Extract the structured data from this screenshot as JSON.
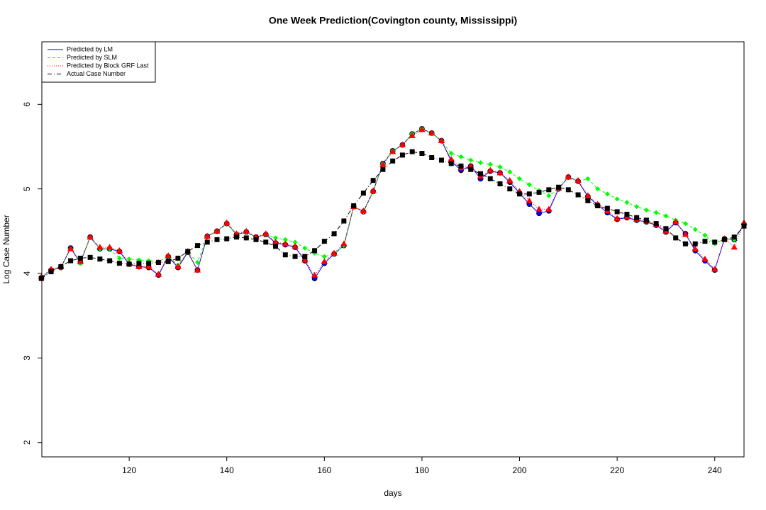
{
  "chart_data": {
    "type": "line",
    "title": "One Week Prediction(Covington county, Mississippi)",
    "x_label": "days",
    "y_label": "Log Case Number",
    "x": [
      102,
      104,
      106,
      108,
      110,
      112,
      114,
      116,
      118,
      120,
      122,
      124,
      126,
      128,
      130,
      132,
      134,
      136,
      138,
      140,
      142,
      144,
      146,
      148,
      150,
      152,
      154,
      156,
      158,
      160,
      162,
      164,
      166,
      168,
      170,
      172,
      174,
      176,
      178,
      180,
      182,
      184,
      186,
      188,
      190,
      192,
      194,
      196,
      198,
      200,
      202,
      204,
      206,
      208,
      210,
      212,
      214,
      216,
      218,
      220,
      222,
      224,
      226,
      228,
      230,
      232,
      234,
      236,
      238,
      240,
      242,
      244,
      246
    ],
    "xlim": [
      102.1,
      246
    ],
    "ylim": [
      1.83,
      6.74
    ],
    "xticks": [
      120,
      140,
      160,
      180,
      200,
      220,
      240
    ],
    "yticks": [
      2,
      3,
      4,
      5,
      6
    ],
    "legend": "topleft",
    "series": [
      {
        "name": "Predicted by LM",
        "color": "#0000ff",
        "line_style": "solid",
        "marker": "circle",
        "values": [
          3.95,
          4.04,
          4.07,
          4.3,
          4.13,
          4.43,
          4.29,
          4.29,
          4.26,
          4.11,
          4.08,
          4.07,
          3.98,
          4.2,
          4.07,
          4.25,
          4.04,
          4.44,
          4.5,
          4.59,
          4.46,
          4.49,
          4.43,
          4.46,
          4.36,
          4.34,
          4.31,
          4.15,
          3.94,
          4.12,
          4.23,
          4.33,
          4.79,
          4.73,
          4.97,
          5.3,
          5.45,
          5.52,
          5.65,
          5.71,
          5.66,
          5.57,
          5.33,
          5.22,
          5.27,
          5.12,
          5.21,
          5.19,
          5.08,
          4.95,
          4.82,
          4.71,
          4.74,
          5.0,
          5.14,
          5.09,
          4.91,
          4.81,
          4.72,
          4.64,
          4.66,
          4.63,
          4.61,
          4.57,
          4.49,
          4.6,
          4.47,
          4.27,
          4.15,
          4.04,
          4.41,
          4.4,
          4.58
        ]
      },
      {
        "name": "Predicted by SLM",
        "color": "#00ff00",
        "line_style": "dashed",
        "marker": "diamond",
        "values": [
          3.95,
          4.04,
          4.07,
          4.29,
          4.12,
          4.43,
          4.29,
          4.29,
          4.18,
          4.17,
          4.16,
          4.15,
          4.14,
          4.2,
          4.1,
          4.25,
          4.13,
          4.44,
          4.5,
          4.59,
          4.46,
          4.49,
          4.43,
          4.46,
          4.42,
          4.4,
          4.37,
          4.3,
          4.24,
          4.2,
          4.23,
          4.33,
          4.79,
          4.73,
          4.97,
          5.3,
          5.45,
          5.52,
          5.65,
          5.71,
          5.66,
          5.57,
          5.42,
          5.38,
          5.34,
          5.31,
          5.29,
          5.26,
          5.2,
          5.12,
          5.05,
          4.98,
          4.92,
          5.0,
          5.14,
          5.09,
          5.12,
          5.0,
          4.94,
          4.88,
          4.84,
          4.79,
          4.75,
          4.72,
          4.68,
          4.63,
          4.59,
          4.52,
          4.45,
          4.35,
          4.41,
          4.4,
          4.58
        ]
      },
      {
        "name": "Predicted by Block GRF Last",
        "color": "#ff0000",
        "line_style": "dotted",
        "marker": "triangle",
        "values": [
          3.96,
          4.05,
          4.08,
          4.29,
          4.14,
          4.43,
          4.31,
          4.31,
          4.27,
          4.12,
          4.08,
          4.08,
          3.99,
          4.21,
          4.08,
          4.26,
          4.04,
          4.44,
          4.5,
          4.6,
          4.47,
          4.5,
          4.43,
          4.47,
          4.37,
          4.35,
          4.32,
          4.16,
          3.98,
          4.14,
          4.24,
          4.35,
          4.79,
          4.74,
          4.98,
          5.29,
          5.44,
          5.52,
          5.63,
          5.7,
          5.66,
          5.57,
          5.35,
          5.25,
          5.27,
          5.15,
          5.22,
          5.19,
          5.1,
          4.97,
          4.86,
          4.76,
          4.76,
          5.01,
          5.14,
          5.1,
          4.92,
          4.82,
          4.74,
          4.65,
          4.67,
          4.64,
          4.62,
          4.58,
          4.5,
          4.61,
          4.46,
          4.29,
          4.17,
          4.05,
          4.41,
          4.31,
          4.6
        ]
      },
      {
        "name": "Actual Case Number",
        "color": "#000000",
        "line_style": "dashdot",
        "marker": "square",
        "values": [
          3.94,
          4.02,
          4.08,
          4.15,
          4.18,
          4.19,
          4.17,
          4.15,
          4.12,
          4.11,
          4.12,
          4.12,
          4.13,
          4.14,
          4.18,
          4.26,
          4.33,
          4.37,
          4.4,
          4.41,
          4.43,
          4.42,
          4.4,
          4.37,
          4.32,
          4.22,
          4.2,
          4.2,
          4.27,
          4.38,
          4.47,
          4.62,
          4.8,
          4.95,
          5.1,
          5.23,
          5.33,
          5.4,
          5.44,
          5.42,
          5.37,
          5.34,
          5.3,
          5.27,
          5.23,
          5.18,
          5.12,
          5.06,
          5.0,
          4.94,
          4.94,
          4.96,
          4.99,
          5.02,
          4.99,
          4.93,
          4.86,
          4.8,
          4.77,
          4.73,
          4.7,
          4.66,
          4.63,
          4.59,
          4.53,
          4.42,
          4.35,
          4.35,
          4.38,
          4.37,
          4.4,
          4.43,
          4.56
        ]
      }
    ]
  }
}
